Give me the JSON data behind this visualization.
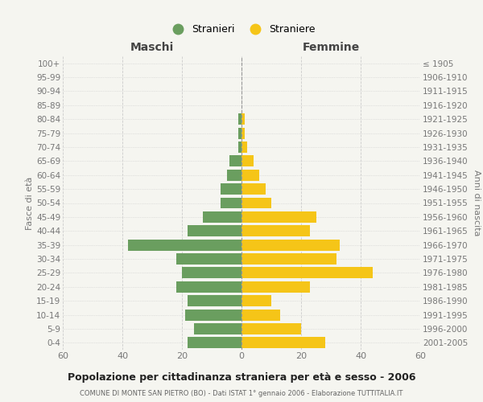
{
  "age_groups": [
    "100+",
    "95-99",
    "90-94",
    "85-89",
    "80-84",
    "75-79",
    "70-74",
    "65-69",
    "60-64",
    "55-59",
    "50-54",
    "45-49",
    "40-44",
    "35-39",
    "30-34",
    "25-29",
    "20-24",
    "15-19",
    "10-14",
    "5-9",
    "0-4"
  ],
  "birth_years": [
    "≤ 1905",
    "1906-1910",
    "1911-1915",
    "1916-1920",
    "1921-1925",
    "1926-1930",
    "1931-1935",
    "1936-1940",
    "1941-1945",
    "1946-1950",
    "1951-1955",
    "1956-1960",
    "1961-1965",
    "1966-1970",
    "1971-1975",
    "1976-1980",
    "1981-1985",
    "1986-1990",
    "1991-1995",
    "1996-2000",
    "2001-2005"
  ],
  "maschi": [
    0,
    0,
    0,
    0,
    1,
    1,
    1,
    4,
    5,
    7,
    7,
    13,
    18,
    38,
    22,
    20,
    22,
    18,
    19,
    16,
    18
  ],
  "femmine": [
    0,
    0,
    0,
    0,
    1,
    1,
    2,
    4,
    6,
    8,
    10,
    25,
    23,
    33,
    32,
    44,
    23,
    10,
    13,
    20,
    28
  ],
  "color_maschi": "#6a9e5f",
  "color_femmine": "#f5c518",
  "bg_color": "#f5f5f0",
  "grid_color": "#cccccc",
  "title": "Popolazione per cittadinanza straniera per età e sesso - 2006",
  "subtitle": "COMUNE DI MONTE SAN PIETRO (BO) - Dati ISTAT 1° gennaio 2006 - Elaborazione TUTTITALIA.IT",
  "xlabel_left": "Maschi",
  "xlabel_right": "Femmine",
  "ylabel_left": "Fasce di età",
  "ylabel_right": "Anni di nascita",
  "legend_maschi": "Stranieri",
  "legend_femmine": "Straniere",
  "xlim": 60,
  "bar_height": 0.8
}
